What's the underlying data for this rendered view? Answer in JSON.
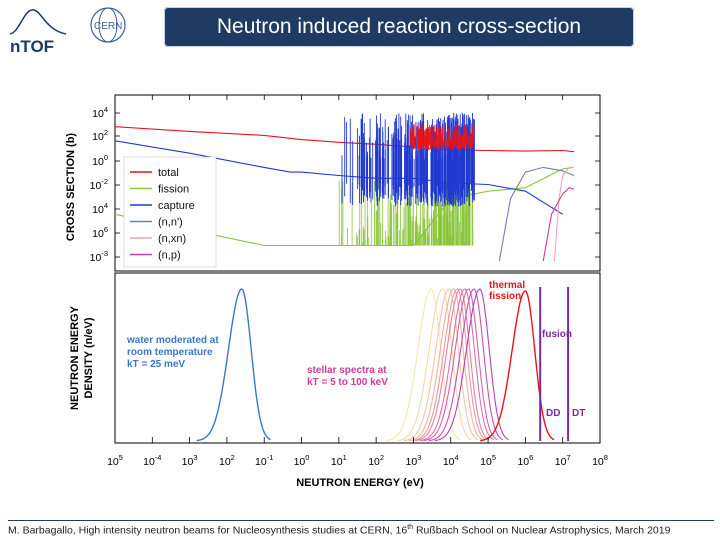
{
  "header": {
    "title": "Neutron induced reaction cross-section",
    "logo_ntof_text": "nTOF",
    "logo_cern_text": "CERN"
  },
  "footer": {
    "text_before_sup": "M. Barbagallo, High intensity neutron beams for Nucleosynthesis studies at CERN, 16",
    "sup": "th",
    "text_after_sup": " Rußbach School on Nuclear Astrophysics, March 2019"
  },
  "chart_data": [
    {
      "type": "line",
      "panel": "top",
      "ylabel": "CROSS SECTION (b)",
      "log_x": true,
      "log_y": true,
      "xlim": [
        1e-05,
        100000000.0
      ],
      "y_ticks": [
        "10^4",
        "10^2",
        "10^0",
        "10^-2",
        "10^4",
        "10^6",
        "10^-3"
      ],
      "legend_placement": "middle-left",
      "series": [
        {
          "name": "total",
          "color": "#e8141c",
          "x": [
            1e-05,
            0.001,
            0.1,
            1,
            10,
            100,
            1000,
            3000,
            10000.0,
            100000.0,
            1000000.0,
            10000000.0,
            20000000.0
          ],
          "y": [
            400,
            200,
            110,
            60,
            40,
            30,
            20,
            15,
            13,
            12,
            11,
            12,
            10
          ]
        },
        {
          "name": "fission",
          "color": "#8cc63f",
          "x": [
            1e-05,
            0.001,
            0.1,
            0.3,
            1,
            10,
            100,
            1000,
            10000.0,
            100000.0,
            1000000.0,
            10000000.0,
            20000000.0
          ],
          "y": [
            0.001,
            0.0001,
            1e-05,
            1e-05,
            1e-05,
            1e-05,
            1e-05,
            1e-05,
            0.01,
            0.03,
            0.05,
            0.8,
            1
          ]
        },
        {
          "name": "capture",
          "color": "#2039d0",
          "x": [
            1e-05,
            0.001,
            0.1,
            0.5,
            1,
            10,
            100,
            1000,
            10000.0,
            100000.0,
            1000000.0,
            10000000.0
          ],
          "y": [
            50,
            8,
            1,
            0.5,
            0.5,
            0.3,
            0.2,
            0.2,
            0.1,
            0.08,
            0.03,
            0.001
          ]
        },
        {
          "name": "(n,n')",
          "color": "#6f7fb0",
          "x": [
            200000.0,
            400000.0,
            1000000.0,
            3000000.0,
            10000000.0,
            20000000.0
          ],
          "y": [
            1e-06,
            0.01,
            0.5,
            1,
            0.6,
            0.3
          ]
        },
        {
          "name": "(n,xn)",
          "color": "#f2a2b4",
          "x": [
            6000000.0,
            8000000.0,
            10000000.0,
            15000000.0,
            20000000.0
          ],
          "y": [
            1e-06,
            0.01,
            0.3,
            1,
            1
          ]
        },
        {
          "name": "(n,p)",
          "color": "#d03a9a",
          "x": [
            3000000.0,
            5000000.0,
            10000000.0,
            15000000.0,
            20000000.0
          ],
          "y": [
            1e-06,
            0.001,
            0.02,
            0.05,
            0.04
          ]
        }
      ]
    },
    {
      "type": "line",
      "panel": "bottom",
      "ylabel": "NEUTRON ENERGY DENSITY (n/eV)",
      "xlabel": "NEUTRON ENERGY (eV)",
      "log_x": true,
      "xlim": [
        1e-05,
        100000000.0
      ],
      "x_ticks": [
        "10^5",
        "10^-4",
        "10^3",
        "10^2",
        "10^-1",
        "10^0",
        "10^1",
        "10^2",
        "10^3",
        "10^4",
        "10^5",
        "10^6",
        "10^7",
        "10^8"
      ],
      "spectra": {
        "thermal_water": {
          "peak_ev": 0.025,
          "color": "#3a78c8"
        },
        "stellar_kT_kev": [
          5,
          10,
          15,
          20,
          25,
          30,
          40,
          50,
          70,
          100
        ],
        "stellar_colors": [
          "#f8e8b0",
          "#f6d8a8",
          "#f4c4a4",
          "#f0b0a0",
          "#ec98a0",
          "#e880a0",
          "#e070a8",
          "#d860ac",
          "#c850b0",
          "#b840b4"
        ],
        "fission": {
          "peak_ev": 1000000,
          "color": "#e8141c"
        },
        "fusion_DD_ev": 2500000,
        "fusion_DT_ev": 14000000,
        "fusion_color": "#7a2aa0"
      },
      "annotations": {
        "water": [
          "water moderated at",
          "room temperature",
          "kT = 25 meV"
        ],
        "stellar": [
          "stellar spectra at",
          "kT = 5 to 100 keV"
        ],
        "thermal_fission": [
          "thermal",
          "fission"
        ],
        "fusion": "fusion",
        "dd": "DD",
        "dt": "DT"
      }
    }
  ],
  "colors": {
    "water_label": "#3a78c8",
    "stellar_label": "#d03a9a",
    "fission_label": "#e8141c",
    "fusion_label": "#7a2aa0"
  }
}
